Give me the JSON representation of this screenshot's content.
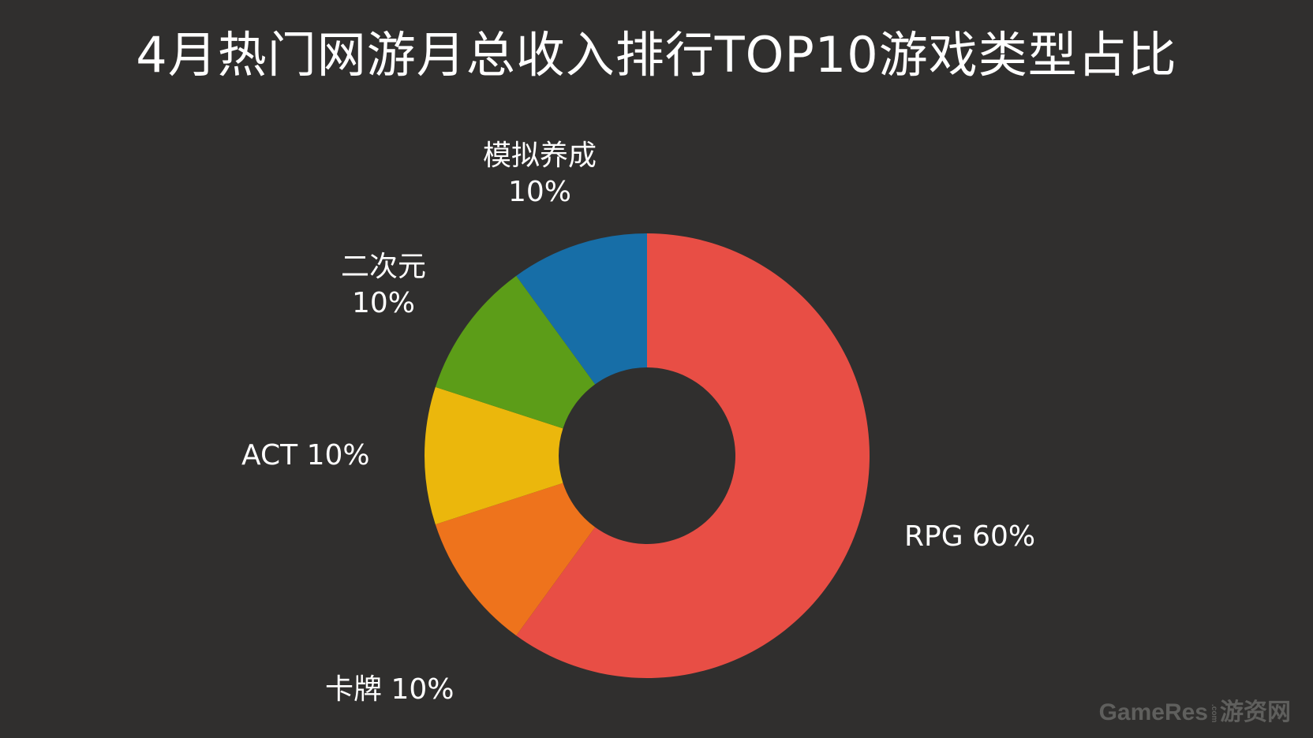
{
  "chart_data": {
    "type": "pie",
    "title": "4月热门网游月总收入排行TOP10游戏类型占比",
    "donut": true,
    "slices": [
      {
        "label": "RPG",
        "value": 60,
        "value_label": "60%",
        "color": "#e84e45"
      },
      {
        "label": "卡牌",
        "value": 10,
        "value_label": "10%",
        "color": "#ee731c"
      },
      {
        "label": "ACT",
        "value": 10,
        "value_label": "10%",
        "color": "#ebb70c"
      },
      {
        "label": "二次元",
        "value": 10,
        "value_label": "10%",
        "color": "#5c9d18"
      },
      {
        "label": "模拟养成",
        "value": 10,
        "value_label": "10%",
        "color": "#176ea7"
      }
    ],
    "legend": "none",
    "background": "#302f2e"
  },
  "watermark": {
    "brand": "GameRes",
    "small": ".com",
    "cn": "游资网"
  }
}
